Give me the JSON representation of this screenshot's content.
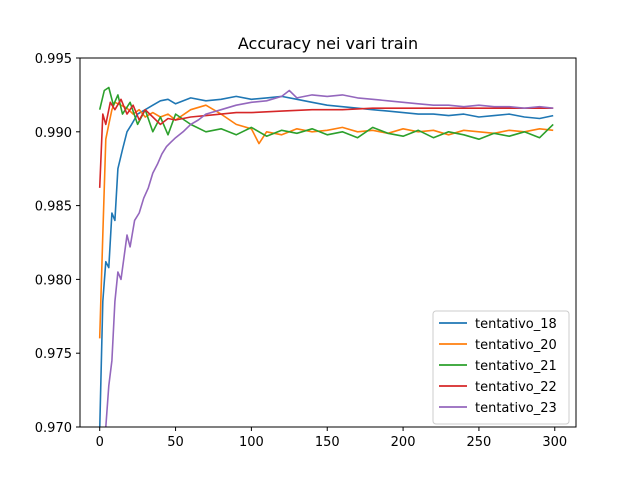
{
  "chart_data": {
    "type": "line",
    "title": "Accuracy nei vari train",
    "xlabel": "",
    "ylabel": "",
    "xlim": [
      -13,
      314
    ],
    "ylim": [
      0.97,
      0.995
    ],
    "x_ticks": [
      0,
      50,
      100,
      150,
      200,
      250,
      300
    ],
    "x_tick_labels": [
      "0",
      "50",
      "100",
      "150",
      "200",
      "250",
      "300"
    ],
    "y_ticks": [
      0.97,
      0.975,
      0.98,
      0.985,
      0.99,
      0.995
    ],
    "y_tick_labels": [
      "0.970",
      "0.975",
      "0.980",
      "0.985",
      "0.990",
      "0.995"
    ],
    "grid": false,
    "legend_position": "lower-right",
    "series": [
      {
        "name": "tentativo_18",
        "color": "#1f77b4",
        "x": [
          0,
          2,
          4,
          6,
          8,
          10,
          12,
          15,
          18,
          21,
          25,
          30,
          35,
          40,
          45,
          50,
          60,
          70,
          80,
          90,
          100,
          110,
          120,
          130,
          140,
          150,
          160,
          170,
          180,
          190,
          200,
          210,
          220,
          230,
          240,
          250,
          260,
          270,
          280,
          290,
          299
        ],
        "y": [
          0.9698,
          0.9785,
          0.9812,
          0.9808,
          0.9845,
          0.984,
          0.9875,
          0.9888,
          0.99,
          0.9905,
          0.9912,
          0.9915,
          0.9918,
          0.9921,
          0.9922,
          0.9919,
          0.9923,
          0.9921,
          0.9922,
          0.9924,
          0.9922,
          0.9923,
          0.9924,
          0.9922,
          0.992,
          0.9918,
          0.9917,
          0.9916,
          0.9915,
          0.9914,
          0.9913,
          0.9912,
          0.9912,
          0.9911,
          0.9912,
          0.991,
          0.9911,
          0.9912,
          0.991,
          0.9909,
          0.9911
        ]
      },
      {
        "name": "tentativo_20",
        "color": "#ff7f0e",
        "x": [
          0,
          2,
          4,
          6,
          8,
          10,
          14,
          18,
          22,
          26,
          30,
          35,
          40,
          45,
          50,
          60,
          70,
          80,
          90,
          100,
          105,
          110,
          120,
          130,
          140,
          150,
          160,
          170,
          180,
          190,
          200,
          210,
          220,
          230,
          240,
          250,
          260,
          270,
          280,
          290,
          299
        ],
        "y": [
          0.976,
          0.983,
          0.9895,
          0.9905,
          0.9915,
          0.992,
          0.9918,
          0.9916,
          0.9912,
          0.9915,
          0.991,
          0.9913,
          0.991,
          0.9912,
          0.9908,
          0.9915,
          0.9918,
          0.9912,
          0.9905,
          0.9902,
          0.9892,
          0.99,
          0.9898,
          0.9902,
          0.99,
          0.9901,
          0.9903,
          0.99,
          0.9901,
          0.9899,
          0.9902,
          0.99,
          0.9901,
          0.9898,
          0.9901,
          0.99,
          0.9899,
          0.9901,
          0.99,
          0.9902,
          0.9901
        ]
      },
      {
        "name": "tentativo_21",
        "color": "#2ca02c",
        "x": [
          0,
          3,
          6,
          9,
          12,
          15,
          20,
          25,
          30,
          35,
          40,
          45,
          50,
          60,
          70,
          80,
          90,
          100,
          110,
          120,
          130,
          140,
          150,
          160,
          170,
          180,
          190,
          200,
          210,
          220,
          230,
          240,
          250,
          260,
          270,
          280,
          290,
          299
        ],
        "y": [
          0.9915,
          0.9928,
          0.993,
          0.9918,
          0.9925,
          0.9912,
          0.992,
          0.9905,
          0.9915,
          0.99,
          0.991,
          0.9898,
          0.9912,
          0.9905,
          0.99,
          0.9902,
          0.9898,
          0.9903,
          0.9897,
          0.9901,
          0.9899,
          0.9902,
          0.9898,
          0.99,
          0.9896,
          0.9903,
          0.9899,
          0.9897,
          0.9901,
          0.9896,
          0.99,
          0.9898,
          0.9895,
          0.9899,
          0.9897,
          0.99,
          0.9896,
          0.9905
        ]
      },
      {
        "name": "tentativo_22",
        "color": "#d62728",
        "x": [
          0,
          2,
          4,
          7,
          10,
          14,
          18,
          22,
          26,
          30,
          35,
          40,
          45,
          50,
          60,
          70,
          80,
          90,
          100,
          120,
          140,
          160,
          180,
          200,
          220,
          240,
          260,
          280,
          290,
          299
        ],
        "y": [
          0.9862,
          0.9912,
          0.9905,
          0.992,
          0.9915,
          0.9922,
          0.9912,
          0.9918,
          0.9908,
          0.9915,
          0.991,
          0.9905,
          0.9909,
          0.9908,
          0.991,
          0.9911,
          0.9912,
          0.9913,
          0.9913,
          0.9914,
          0.9915,
          0.9915,
          0.9916,
          0.9916,
          0.9916,
          0.9916,
          0.9916,
          0.9916,
          0.9916,
          0.9916
        ]
      },
      {
        "name": "tentativo_23",
        "color": "#9467bd",
        "x": [
          4,
          6,
          8,
          10,
          12,
          14,
          16,
          18,
          20,
          23,
          26,
          29,
          32,
          35,
          38,
          41,
          44,
          47,
          50,
          55,
          60,
          65,
          70,
          80,
          90,
          100,
          110,
          120,
          125,
          130,
          140,
          150,
          160,
          170,
          180,
          190,
          200,
          210,
          220,
          230,
          240,
          250,
          260,
          270,
          280,
          290,
          299
        ],
        "y": [
          0.97,
          0.9728,
          0.9745,
          0.9785,
          0.9805,
          0.98,
          0.9815,
          0.983,
          0.9822,
          0.984,
          0.9845,
          0.9855,
          0.9862,
          0.9872,
          0.9878,
          0.9885,
          0.989,
          0.9893,
          0.9896,
          0.99,
          0.9905,
          0.9908,
          0.9912,
          0.9915,
          0.9918,
          0.992,
          0.9921,
          0.9924,
          0.9928,
          0.9923,
          0.9925,
          0.9924,
          0.9925,
          0.9923,
          0.9922,
          0.9921,
          0.992,
          0.9919,
          0.9918,
          0.9918,
          0.9917,
          0.9918,
          0.9917,
          0.9917,
          0.9916,
          0.9917,
          0.9916
        ]
      }
    ]
  }
}
